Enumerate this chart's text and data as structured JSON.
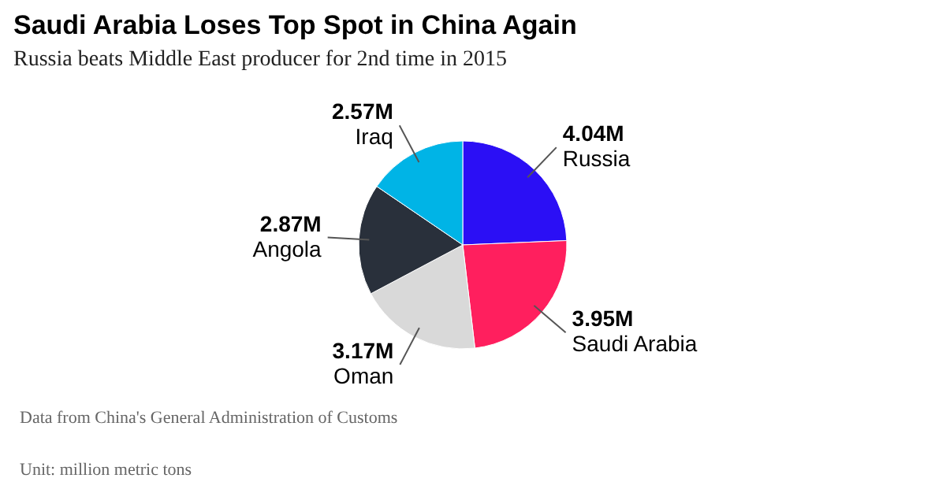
{
  "chart_data": {
    "type": "pie",
    "title": "Saudi Arabia Loses Top Spot in China Again",
    "subtitle": "Russia beats Middle East producer for 2nd time in 2015",
    "categories": [
      "Russia",
      "Saudi Arabia",
      "Oman",
      "Angola",
      "Iraq"
    ],
    "values": [
      4.04,
      3.95,
      3.17,
      2.87,
      2.57
    ],
    "value_labels": [
      "4.04M",
      "3.95M",
      "3.17M",
      "2.87M",
      "2.57M"
    ],
    "colors": [
      "#2b0ff5",
      "#ff1f5e",
      "#d9d9d9",
      "#29303b",
      "#00b4e6"
    ],
    "annotations": [
      "Data from China's General Administration of Customs",
      "Unit: million metric tons"
    ]
  }
}
